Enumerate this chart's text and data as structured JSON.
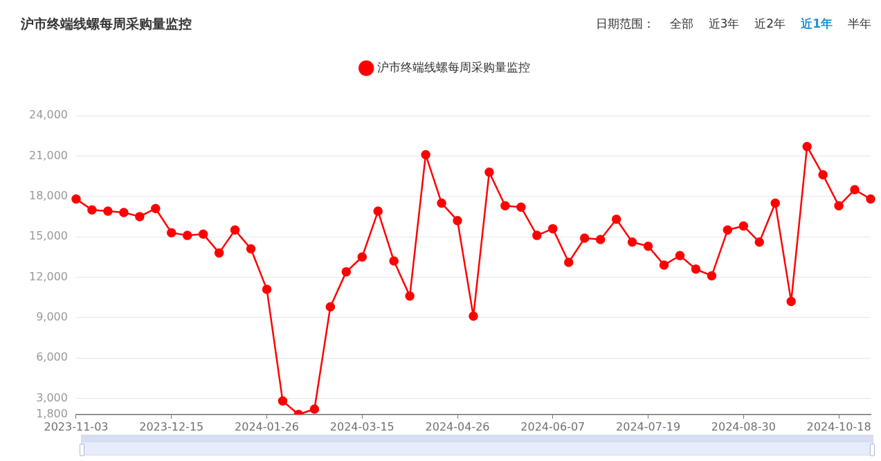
{
  "chart_data": {
    "type": "line",
    "title": "沪市终端线螺每周采购量监控",
    "annotations": [
      "日期范围：",
      "全部",
      "近3年",
      "近2年",
      "近1年",
      "半年"
    ],
    "categories": [
      "2023-11-03",
      null,
      null,
      null,
      null,
      null,
      "2023-12-15",
      null,
      null,
      null,
      null,
      null,
      "2024-01-26",
      null,
      null,
      null,
      null,
      null,
      "2024-03-15",
      null,
      null,
      null,
      null,
      null,
      "2024-04-26",
      null,
      null,
      null,
      null,
      null,
      "2024-06-07",
      null,
      null,
      null,
      null,
      null,
      "2024-07-19",
      null,
      null,
      null,
      null,
      null,
      "2024-08-30",
      null,
      null,
      null,
      null,
      null,
      "2024-10-18",
      null,
      null
    ],
    "series": [
      {
        "name": "沪市终端线螺每周采购量监控",
        "color": "#ff0000",
        "values": [
          17800,
          17000,
          16900,
          16800,
          16500,
          17100,
          15300,
          15100,
          15200,
          13800,
          15500,
          14100,
          11100,
          2800,
          1800,
          2200,
          9800,
          12400,
          13500,
          16900,
          13200,
          10600,
          21100,
          17500,
          16200,
          9100,
          19800,
          17300,
          17200,
          15100,
          15600,
          13100,
          14900,
          14800,
          16300,
          14600,
          14300,
          12900,
          13600,
          12600,
          12100,
          15500,
          15800,
          14600,
          17500,
          10200,
          21700,
          19600,
          17300,
          18500,
          17800
        ]
      }
    ],
    "ylim": [
      1800,
      24000
    ],
    "yticks": [
      {
        "value": 1800,
        "label": "1,800"
      },
      {
        "value": 3000,
        "label": "3,000"
      },
      {
        "value": 6000,
        "label": "6,000"
      },
      {
        "value": 9000,
        "label": "9,000"
      },
      {
        "value": 12000,
        "label": "12,000"
      },
      {
        "value": 15000,
        "label": "15,000"
      },
      {
        "value": 18000,
        "label": "18,000"
      },
      {
        "value": 21000,
        "label": "21,000"
      },
      {
        "value": 24000,
        "label": "24,000"
      }
    ],
    "grid": "y",
    "legend": "top",
    "marker": "circle",
    "line_style": "solid"
  }
}
